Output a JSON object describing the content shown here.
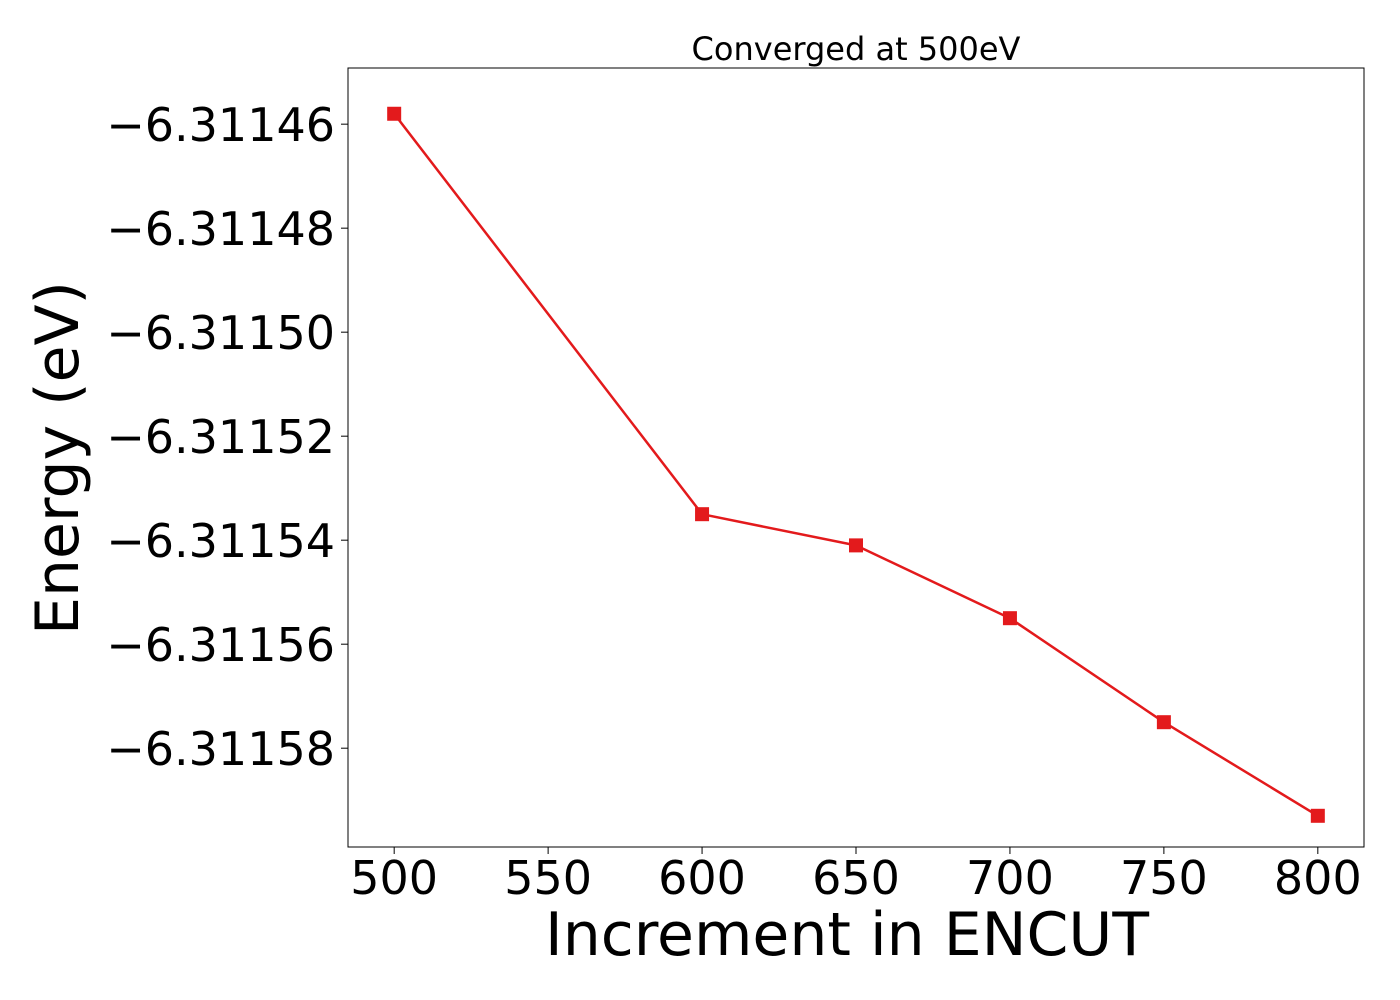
{
  "chart_data": {
    "type": "line",
    "title": "Converged at 500eV",
    "xlabel": "Increment in ENCUT",
    "ylabel": "Energy (eV)",
    "x": [
      500,
      600,
      650,
      700,
      750,
      800
    ],
    "series": [
      {
        "values": [
          -6.311458,
          -6.311535,
          -6.311541,
          -6.311555,
          -6.311575,
          -6.311593
        ],
        "color": "#e31a1c",
        "marker": "square"
      }
    ],
    "xlim": [
      485,
      815
    ],
    "ylim": [
      -6.311599,
      -6.3114492
    ],
    "xticks": [
      500,
      550,
      600,
      650,
      700,
      750,
      800
    ],
    "xtick_labels": [
      "500",
      "550",
      "600",
      "650",
      "700",
      "750",
      "800"
    ],
    "yticks": [
      -6.31146,
      -6.31148,
      -6.3115,
      -6.31152,
      -6.31154,
      -6.31156,
      -6.31158
    ],
    "ytick_labels": [
      "−6.31146",
      "−6.31148",
      "−6.31150",
      "−6.31152",
      "−6.31154",
      "−6.31156",
      "−6.31158"
    ],
    "grid": false,
    "legend": "none"
  }
}
